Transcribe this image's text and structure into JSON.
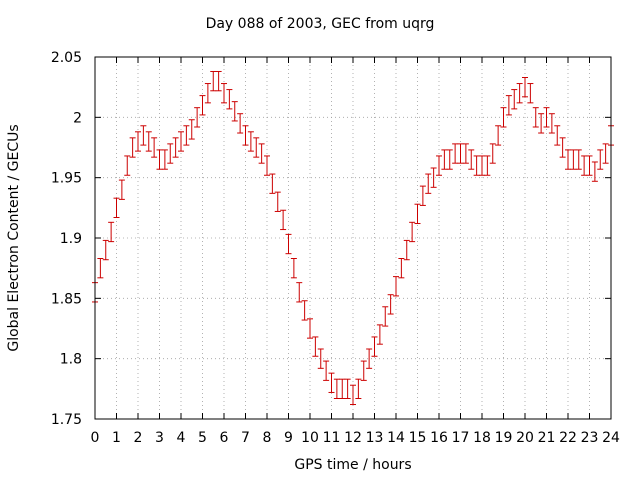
{
  "chart_data": {
    "type": "scatter",
    "title": "Day 088 of 2003, GEC from uqrg",
    "xlabel": "GPS time / hours",
    "ylabel": "Global Electron Content / GECUs",
    "xlim": [
      0,
      24
    ],
    "ylim": [
      1.75,
      2.05
    ],
    "x_ticks": [
      0,
      1,
      2,
      3,
      4,
      5,
      6,
      7,
      8,
      9,
      10,
      11,
      12,
      13,
      14,
      15,
      16,
      17,
      18,
      19,
      20,
      21,
      22,
      23,
      24
    ],
    "y_ticks": [
      1.75,
      1.8,
      1.85,
      1.9,
      1.95,
      2,
      2.05
    ],
    "y_tick_labels": [
      "1.75",
      "1.8",
      "1.85",
      "1.9",
      "1.95",
      "2",
      "2.05"
    ],
    "grid": true,
    "error_bar": 0.008,
    "series_color": "#cc0000",
    "series": [
      {
        "x": [
          0,
          0.25,
          0.5,
          0.75,
          1,
          1.25,
          1.5,
          1.75,
          2,
          2.25,
          2.5,
          2.75,
          3,
          3.25,
          3.5,
          3.75,
          4,
          4.25,
          4.5,
          4.75,
          5,
          5.25,
          5.5,
          5.75,
          6,
          6.25,
          6.5,
          6.75,
          7,
          7.25,
          7.5,
          7.75,
          8,
          8.25,
          8.5,
          8.75,
          9,
          9.25,
          9.5,
          9.75,
          10,
          10.25,
          10.5,
          10.75,
          11,
          11.25,
          11.5,
          11.75,
          12,
          12.25,
          12.5,
          12.75,
          13,
          13.25,
          13.5,
          13.75,
          14,
          14.25,
          14.5,
          14.75,
          15,
          15.25,
          15.5,
          15.75,
          16,
          16.25,
          16.5,
          16.75,
          17,
          17.25,
          17.5,
          17.75,
          18,
          18.25,
          18.5,
          18.75,
          19,
          19.25,
          19.5,
          19.75,
          20,
          20.25,
          20.5,
          20.75,
          21,
          21.25,
          21.5,
          21.75,
          22,
          22.25,
          22.5,
          22.75,
          23,
          23.25,
          23.5,
          23.75,
          24
        ],
        "y": [
          1.855,
          1.875,
          1.89,
          1.905,
          1.925,
          1.94,
          1.96,
          1.975,
          1.98,
          1.985,
          1.98,
          1.975,
          1.965,
          1.965,
          1.97,
          1.975,
          1.98,
          1.985,
          1.99,
          2.0,
          2.01,
          2.02,
          2.03,
          2.03,
          2.02,
          2.015,
          2.005,
          1.995,
          1.985,
          1.98,
          1.975,
          1.97,
          1.96,
          1.945,
          1.93,
          1.915,
          1.895,
          1.875,
          1.855,
          1.84,
          1.825,
          1.81,
          1.8,
          1.79,
          1.78,
          1.775,
          1.775,
          1.775,
          1.77,
          1.775,
          1.79,
          1.8,
          1.81,
          1.82,
          1.835,
          1.845,
          1.86,
          1.875,
          1.89,
          1.905,
          1.92,
          1.935,
          1.945,
          1.95,
          1.96,
          1.965,
          1.965,
          1.97,
          1.97,
          1.97,
          1.965,
          1.96,
          1.96,
          1.96,
          1.97,
          1.985,
          2.0,
          2.01,
          2.015,
          2.02,
          2.025,
          2.02,
          2.0,
          1.995,
          2.0,
          1.995,
          1.985,
          1.975,
          1.965,
          1.965,
          1.965,
          1.96,
          1.96,
          1.955,
          1.965,
          1.97,
          1.985
        ]
      }
    ]
  }
}
